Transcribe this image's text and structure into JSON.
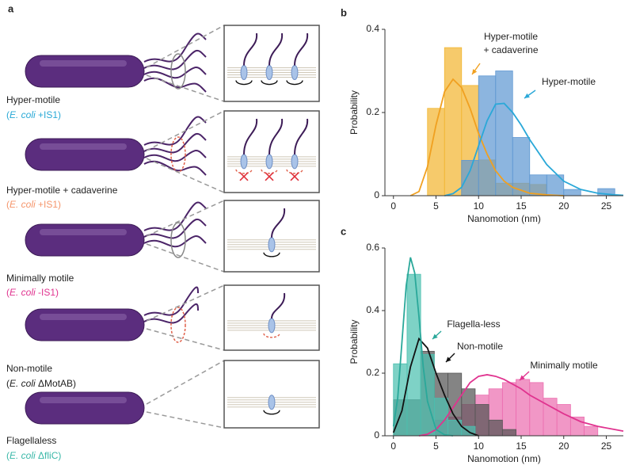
{
  "panel_a": {
    "label": "a",
    "cells": [
      {
        "name": "Hyper-motile",
        "color": "#29a9d6",
        "strain": [
          "(",
          "E. coli",
          " +IS1)"
        ]
      },
      {
        "name": "Hyper-motile + cadaverine",
        "color": "#f5956b",
        "strain": [
          "(",
          "E. coli",
          " +IS1)"
        ]
      },
      {
        "name": "Minimally motile",
        "color": "#e0338f",
        "strain": [
          "(",
          "E. coli",
          " -IS1)"
        ]
      },
      {
        "name": "Non-motile",
        "color": "#222222",
        "strain": [
          "(",
          "E. coli",
          " ΔMotAB)"
        ]
      },
      {
        "name": "Flagellaless",
        "color": "#3ab8a8",
        "strain": [
          "(",
          "E. coli",
          " ΔfliC)"
        ]
      }
    ]
  },
  "chart_data": [
    {
      "type": "histogram",
      "panel": "b",
      "xlabel": "Nanomotion (nm)",
      "ylabel": "Probability",
      "xlim": [
        -1,
        27
      ],
      "ylim": [
        0,
        0.4
      ],
      "xticks": [
        0,
        5,
        10,
        15,
        20,
        25
      ],
      "yticks": [
        0,
        0.2,
        0.4
      ],
      "bins": [
        4,
        6,
        8,
        10,
        12,
        14,
        16,
        18,
        20,
        22,
        24,
        26
      ],
      "series": [
        {
          "annotation": [
            "Hyper-motile",
            "+ cadaverine"
          ],
          "color": "#f2b632",
          "line_color": "#f0a020",
          "values": [
            0.21,
            0.356,
            0.265,
            0.086,
            0.03,
            0.03,
            0.027,
            0,
            0,
            0,
            0
          ],
          "fit": {
            "x": [
              2,
              3,
              4,
              5,
              6,
              7,
              8,
              9,
              10,
              11,
              12,
              13,
              14,
              16,
              18,
              20
            ],
            "y": [
              0,
              0.01,
              0.07,
              0.17,
              0.25,
              0.28,
              0.26,
              0.21,
              0.15,
              0.1,
              0.06,
              0.035,
              0.02,
              0.006,
              0.002,
              0
            ]
          }
        },
        {
          "annotation": [
            "Hyper-motile"
          ],
          "color": "#5f98d2",
          "line_color": "#2aa8d8",
          "values": [
            0,
            0,
            0.085,
            0.288,
            0.3,
            0.14,
            0.05,
            0.05,
            0.015,
            0,
            0.017
          ],
          "fit": {
            "x": [
              6,
              7,
              8,
              9,
              10,
              11,
              12,
              13,
              14,
              15,
              16,
              18,
              20,
              22,
              24,
              26,
              27
            ],
            "y": [
              0,
              0.005,
              0.02,
              0.06,
              0.12,
              0.18,
              0.22,
              0.222,
              0.2,
              0.17,
              0.135,
              0.075,
              0.035,
              0.015,
              0.006,
              0.002,
              0.001
            ]
          }
        }
      ]
    },
    {
      "type": "histogram",
      "panel": "c",
      "xlabel": "Nanomotion (nm)",
      "ylabel": "Probability",
      "xlim": [
        -1,
        27
      ],
      "ylim": [
        0,
        0.6
      ],
      "xticks": [
        0,
        5,
        10,
        15,
        20,
        25
      ],
      "yticks": [
        0,
        0.2,
        0.4,
        0.6
      ],
      "bins": [
        0,
        1.6,
        3.2,
        4.8,
        6.4,
        8,
        9.6,
        11.2,
        12.8,
        14.4,
        16,
        17.6,
        19.2,
        20.8,
        22.4,
        24,
        25.6
      ],
      "series": [
        {
          "annotation": [
            "Minimally motile"
          ],
          "color": "#ec6fb0",
          "line_color": "#e0338f",
          "values": [
            0,
            0,
            0,
            0.05,
            0.06,
            0.1,
            0.13,
            0.15,
            0.17,
            0.18,
            0.17,
            0.12,
            0.1,
            0.06,
            0.03,
            0
          ],
          "fit": {
            "x": [
              3,
              4,
              5,
              6,
              7,
              8,
              9,
              10,
              11,
              12,
              13,
              14,
              15,
              16,
              18,
              20,
              22,
              24,
              26,
              27
            ],
            "y": [
              0,
              0.005,
              0.02,
              0.05,
              0.09,
              0.13,
              0.17,
              0.19,
              0.195,
              0.19,
              0.18,
              0.165,
              0.15,
              0.13,
              0.1,
              0.07,
              0.045,
              0.03,
              0.02,
              0.015
            ]
          }
        },
        {
          "annotation": [
            "Non-motile"
          ],
          "color": "#555555",
          "line_color": "#111111",
          "values": [
            0.115,
            0.115,
            0.27,
            0.2,
            0.2,
            0.15,
            0.1,
            0.05,
            0.02,
            0,
            0,
            0,
            0,
            0,
            0,
            0
          ],
          "fit": {
            "x": [
              0,
              1,
              2,
              3,
              4,
              5,
              6,
              7,
              8,
              9,
              10
            ],
            "y": [
              0.01,
              0.08,
              0.22,
              0.31,
              0.28,
              0.2,
              0.13,
              0.07,
              0.03,
              0.01,
              0
            ]
          }
        },
        {
          "annotation": [
            "Flagella-less"
          ],
          "color": "#4cc0b0",
          "line_color": "#2aa89a",
          "values": [
            0.23,
            0.516,
            0.26,
            0.12,
            0.05,
            0.03,
            0,
            0,
            0,
            0,
            0,
            0,
            0,
            0,
            0,
            0
          ],
          "fit": {
            "x": [
              0,
              0.5,
              1,
              1.5,
              2,
              2.5,
              3,
              3.5,
              4,
              5,
              6,
              7
            ],
            "y": [
              0.03,
              0.12,
              0.3,
              0.48,
              0.57,
              0.52,
              0.38,
              0.22,
              0.11,
              0.02,
              0.003,
              0
            ]
          }
        }
      ]
    }
  ]
}
